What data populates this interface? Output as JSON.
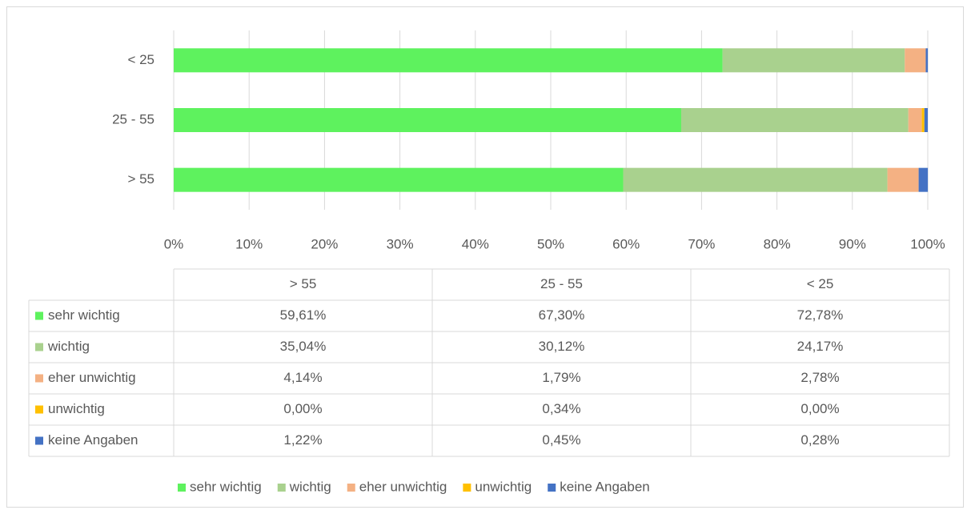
{
  "chart_data": {
    "type": "stacked-bar-horizontal",
    "categories": [
      "> 55",
      "25 - 55",
      "< 25"
    ],
    "series": [
      {
        "name": "sehr wichtig",
        "color": "#5ef25e",
        "values": [
          59.61,
          67.3,
          72.78
        ],
        "value_labels": [
          "59,61%",
          "67,30%",
          "72,78%"
        ]
      },
      {
        "name": "wichtig",
        "color": "#a9d18e",
        "values": [
          35.04,
          30.12,
          24.17
        ],
        "value_labels": [
          "35,04%",
          "30,12%",
          "24,17%"
        ]
      },
      {
        "name": "eher unwichtig",
        "color": "#f4b183",
        "values": [
          4.14,
          1.79,
          2.78
        ],
        "value_labels": [
          "4,14%",
          "1,79%",
          "2,78%"
        ]
      },
      {
        "name": "unwichtig",
        "color": "#ffc000",
        "values": [
          0.0,
          0.34,
          0.0
        ],
        "value_labels": [
          "0,00%",
          "0,34%",
          "0,00%"
        ]
      },
      {
        "name": "keine Angaben",
        "color": "#4472c4",
        "values": [
          1.22,
          0.45,
          0.28
        ],
        "value_labels": [
          "1,22%",
          "0,45%",
          "0,28%"
        ]
      }
    ],
    "xlim": [
      0,
      100
    ],
    "xticks": [
      {
        "value": 0,
        "label": "0%"
      },
      {
        "value": 10,
        "label": "10%"
      },
      {
        "value": 20,
        "label": "20%"
      },
      {
        "value": 30,
        "label": "30%"
      },
      {
        "value": 40,
        "label": "40%"
      },
      {
        "value": 50,
        "label": "50%"
      },
      {
        "value": 60,
        "label": "60%"
      },
      {
        "value": 70,
        "label": "70%"
      },
      {
        "value": 80,
        "label": "80%"
      },
      {
        "value": 90,
        "label": "90%"
      },
      {
        "value": 100,
        "label": "100%"
      }
    ],
    "grid": true,
    "legend": "bottom"
  }
}
